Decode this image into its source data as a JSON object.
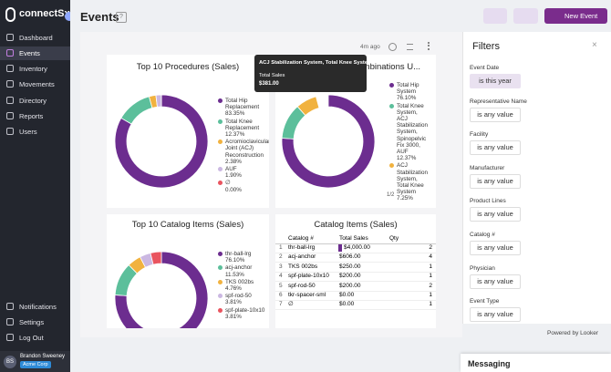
{
  "sidebar": {
    "logo": "connectSx",
    "nav": [
      "Dashboard",
      "Events",
      "Inventory",
      "Movements",
      "Directory",
      "Reports",
      "Users"
    ],
    "bottom_nav": [
      "Notifications",
      "Settings",
      "Log Out"
    ],
    "user": {
      "initials": "BS",
      "name": "Brandon Sweeney",
      "org": "Acme Corp"
    }
  },
  "header": {
    "title": "Events",
    "help": "?",
    "new_event": "New Event"
  },
  "dashboard": {
    "updated": "4m ago",
    "pager": "1/2"
  },
  "tooltip": {
    "title": "ACJ Stabilization System, Total Knee System",
    "label": "Total Sales",
    "value": "$381.00"
  },
  "chart_data": [
    {
      "type": "pie",
      "title": "Top 10 Procedures (Sales)",
      "categories": [
        "Total Hip Replacement",
        "Total Knee Replacement",
        "Acromioclavicular Joint (ACJ) Reconstruction",
        "AUF",
        "∅"
      ],
      "values": [
        83.35,
        12.37,
        2.38,
        1.9,
        0
      ],
      "value_labels": [
        "83.35%",
        "12.37%",
        "2.38%",
        "1.90%",
        "0.00%"
      ],
      "colors": [
        "#6c2d8f",
        "#5cbf9b",
        "#f1b23f",
        "#cbb8e2",
        "#e9545f"
      ]
    },
    {
      "type": "pie",
      "title": "Top 10 Product Combinations U...",
      "categories": [
        "Total Hip System",
        "Total Knee System, ACJ Stabilization System, Spinopelvic Fix 3000, AUF",
        "ACJ Stabilization System, Total Knee System"
      ],
      "values": [
        76.1,
        12.37,
        7.25
      ],
      "value_labels": [
        "76.10%",
        "12.37%",
        "7.25%"
      ],
      "colors": [
        "#6c2d8f",
        "#5cbf9b",
        "#f1b23f"
      ]
    },
    {
      "type": "pie",
      "title": "Top 10 Catalog Items (Sales)",
      "categories": [
        "thr-ball-lrg",
        "acj-anchor",
        "TKS 002bs",
        "spf-rod-50",
        "spf-plate-10x10"
      ],
      "values": [
        76.1,
        11.53,
        4.76,
        3.81,
        3.81
      ],
      "value_labels": [
        "76.10%",
        "11.53%",
        "4.76%",
        "3.81%",
        "3.81%"
      ],
      "colors": [
        "#6c2d8f",
        "#5cbf9b",
        "#f1b23f",
        "#cbb8e2",
        "#e9545f"
      ]
    }
  ],
  "table": {
    "title": "Catalog Items (Sales)",
    "columns": [
      "Catalog #",
      "Total Sales",
      "Qty"
    ],
    "rows": [
      [
        1,
        "thr-ball-lrg",
        "$4,000.00",
        2
      ],
      [
        2,
        "acj-anchor",
        "$606.00",
        4
      ],
      [
        3,
        "TKS 002bs",
        "$250.00",
        1
      ],
      [
        4,
        "spf-plate-10x10",
        "$200.00",
        1
      ],
      [
        5,
        "spf-rod-50",
        "$200.00",
        2
      ],
      [
        6,
        "tkr-spacer-sml",
        "$0.00",
        1
      ],
      [
        7,
        "∅",
        "$0.00",
        1
      ]
    ]
  },
  "filters": {
    "title": "Filters",
    "items": [
      {
        "label": "Event Date",
        "value": "is this year"
      },
      {
        "label": "Representative Name",
        "value": "is any value"
      },
      {
        "label": "Facility",
        "value": "is any value"
      },
      {
        "label": "Manufacturer",
        "value": "is any value"
      },
      {
        "label": "Product Lines",
        "value": "is any value"
      },
      {
        "label": "Catalog #",
        "value": "is any value"
      },
      {
        "label": "Physician",
        "value": "is any value"
      },
      {
        "label": "Event Type",
        "value": "is any value"
      }
    ]
  },
  "footer": {
    "powered_by": "Powered by Looker",
    "messaging": "Messaging"
  }
}
